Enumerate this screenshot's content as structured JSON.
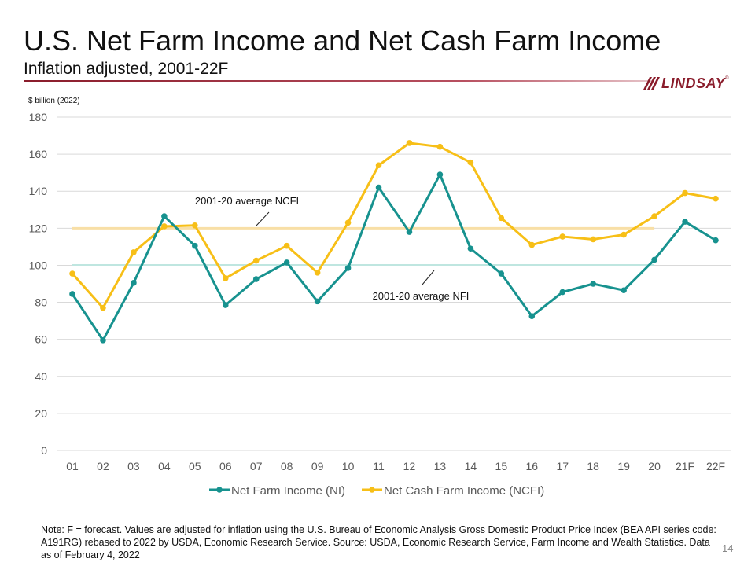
{
  "header": {
    "title": "U.S. Net Farm Income and Net Cash Farm Income",
    "subtitle": "Inflation adjusted, 2001-22F"
  },
  "logo": {
    "text": "LINDSAY",
    "tm": "®",
    "color": "#8a1c2b"
  },
  "chart_data": {
    "type": "line",
    "ylabel": "$ billion (2022)",
    "xlabel": "",
    "ylim": [
      0,
      180
    ],
    "yticks": [
      0,
      20,
      40,
      60,
      80,
      100,
      120,
      140,
      160,
      180
    ],
    "grid": true,
    "legend_position": "bottom",
    "categories": [
      "01",
      "02",
      "03",
      "04",
      "05",
      "06",
      "07",
      "08",
      "09",
      "10",
      "11",
      "12",
      "13",
      "14",
      "15",
      "16",
      "17",
      "18",
      "19",
      "20",
      "21F",
      "22F"
    ],
    "series": [
      {
        "name": "Net Farm Income (NI)",
        "color": "#17928f",
        "values": [
          84.5,
          59.5,
          90.5,
          126.5,
          110.5,
          78.5,
          92.5,
          101.5,
          80.5,
          98.5,
          142,
          118,
          149,
          109,
          95.5,
          72.5,
          85.5,
          90,
          86.5,
          103,
          123.5,
          113.5
        ]
      },
      {
        "name": "Net Cash Farm Income (NCFI)",
        "color": "#f7bf17",
        "values": [
          95.5,
          77,
          107,
          121,
          121.5,
          93,
          102.5,
          110.5,
          96,
          123,
          154,
          166,
          164,
          155.5,
          125.5,
          111,
          115.5,
          114,
          116.5,
          126.5,
          139,
          136
        ]
      }
    ],
    "reference_lines": [
      {
        "label": "2001-20 average NCFI",
        "value": 120,
        "color": "#f8dfa6"
      },
      {
        "label": "2001-20 average NFI",
        "value": 100,
        "color": "#bfe6e0"
      }
    ]
  },
  "footer": {
    "note": "Note: F = forecast. Values are adjusted for inflation using the U.S. Bureau of Economic Analysis Gross Domestic Product Price Index (BEA API series code: A191RG) rebased to 2022 by USDA, Economic Research Service.  Source: USDA, Economic Research Service, Farm Income and Wealth Statistics. Data as of February 4, 2022",
    "page_number": "14"
  }
}
